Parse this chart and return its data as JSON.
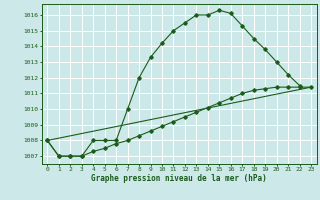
{
  "title": "Graphe pression niveau de la mer (hPa)",
  "bg_color": "#cce8e8",
  "grid_color": "#ffffff",
  "line_color": "#1a5c1a",
  "xlim": [
    -0.5,
    23.5
  ],
  "ylim": [
    1006.5,
    1016.7
  ],
  "xticks": [
    0,
    1,
    2,
    3,
    4,
    5,
    6,
    7,
    8,
    9,
    10,
    11,
    12,
    13,
    14,
    15,
    16,
    17,
    18,
    19,
    20,
    21,
    22,
    23
  ],
  "yticks": [
    1007,
    1008,
    1009,
    1010,
    1011,
    1012,
    1013,
    1014,
    1015,
    1016
  ],
  "series1_x": [
    0,
    1,
    2,
    3,
    4,
    5,
    6,
    7,
    8,
    9,
    10,
    11,
    12,
    13,
    14,
    15,
    16,
    17,
    18,
    19,
    20,
    21,
    22
  ],
  "series1_y": [
    1008,
    1007,
    1007,
    1007,
    1008,
    1008,
    1008,
    1010,
    1012,
    1013.3,
    1014.2,
    1015,
    1015.5,
    1016,
    1016,
    1016.3,
    1016.1,
    1015.3,
    1014.5,
    1013.8,
    1013,
    1012.2,
    1011.5
  ],
  "series2_x": [
    0,
    1,
    2,
    3,
    4,
    5,
    6,
    7,
    8,
    9,
    10,
    11,
    12,
    13,
    14,
    15,
    16,
    17,
    18,
    19,
    20,
    21,
    22,
    23
  ],
  "series2_y": [
    1008,
    1007,
    1007,
    1007,
    1007.3,
    1007.5,
    1007.8,
    1008,
    1008.3,
    1008.6,
    1008.9,
    1009.2,
    1009.5,
    1009.8,
    1010.1,
    1010.4,
    1010.7,
    1011.0,
    1011.2,
    1011.3,
    1011.4,
    1011.4,
    1011.4,
    1011.4
  ],
  "series3_x": [
    0,
    23
  ],
  "series3_y": [
    1008,
    1011.4
  ],
  "figsize": [
    3.2,
    2.0
  ],
  "dpi": 100
}
